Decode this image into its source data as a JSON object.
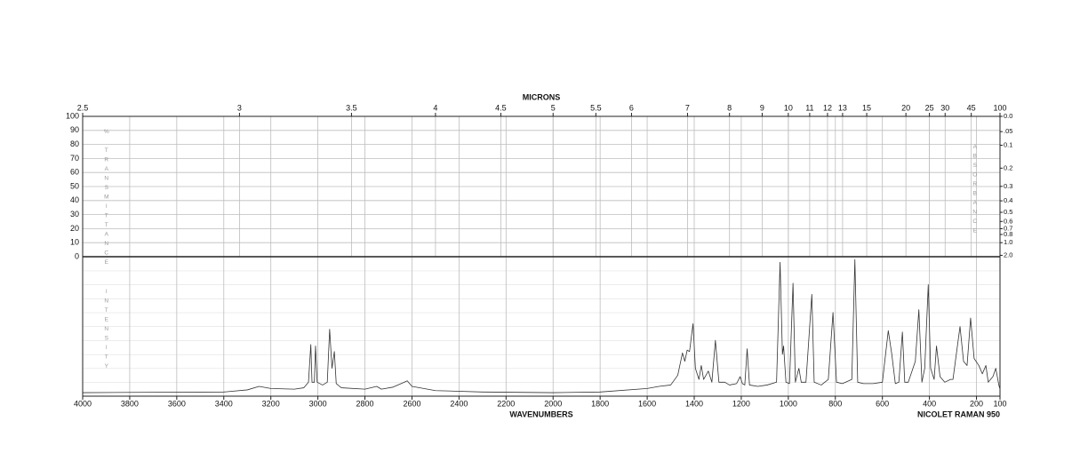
{
  "chart_data": {
    "type": "line",
    "x2label": "MICRONS",
    "xlabel": "WAVENUMBERS",
    "instrument": "NICOLET RAMAN 950",
    "upper_ylabel": "% TRANSMITTANCE",
    "y2label": "ABSORBANCE",
    "ylabel": "INTENSITY",
    "color": "#333333",
    "grid": true,
    "xlim": [
      4000,
      100
    ],
    "xticks": [
      4000,
      3800,
      3600,
      3400,
      3200,
      3000,
      2800,
      2600,
      2400,
      2200,
      2000,
      1800,
      1600,
      1400,
      1200,
      1000,
      800,
      600,
      400,
      200,
      100
    ],
    "x2_scale": "microns",
    "x2ticks": [
      2.5,
      3,
      3.5,
      4,
      4.5,
      5,
      5.5,
      6,
      7,
      8,
      9,
      10,
      11,
      12,
      13,
      15,
      20,
      25,
      30,
      45,
      100
    ],
    "upper_ylim": [
      0,
      100
    ],
    "upper_yticks": [
      0,
      10,
      20,
      30,
      40,
      50,
      60,
      70,
      80,
      90,
      100
    ],
    "y2_scale": "absorbance",
    "y2ticks": [
      {
        "value": 0,
        "label": "0.0"
      },
      {
        "value": 0.05,
        "label": ".05"
      },
      0.1,
      0.2,
      0.3,
      0.4,
      0.5,
      0.6,
      0.7,
      0.8,
      {
        "value": 1,
        "label": "1.0"
      },
      {
        "value": 2,
        "label": "2.0"
      }
    ],
    "ylim": [
      0,
      100
    ],
    "x": [
      4000,
      3700,
      3400,
      3300,
      3250,
      3200,
      3100,
      3060,
      3040,
      3030,
      3025,
      3015,
      3010,
      3003,
      2980,
      2960,
      2950,
      2940,
      2930,
      2922,
      2900,
      2800,
      2750,
      2730,
      2680,
      2640,
      2620,
      2600,
      2500,
      2300,
      2000,
      1800,
      1600,
      1550,
      1500,
      1470,
      1450,
      1440,
      1430,
      1420,
      1405,
      1395,
      1380,
      1370,
      1360,
      1340,
      1325,
      1310,
      1295,
      1270,
      1250,
      1220,
      1205,
      1195,
      1185,
      1175,
      1165,
      1130,
      1090,
      1050,
      1035,
      1025,
      1020,
      1010,
      995,
      980,
      970,
      955,
      945,
      925,
      900,
      890,
      860,
      830,
      810,
      795,
      770,
      730,
      717,
      705,
      680,
      640,
      600,
      575,
      560,
      545,
      530,
      515,
      505,
      490,
      460,
      445,
      432,
      420,
      405,
      395,
      380,
      370,
      355,
      335,
      310,
      300,
      270,
      255,
      240,
      225,
      210,
      190,
      175,
      160,
      150,
      130,
      118,
      105,
      100
    ],
    "values": [
      2.5,
      2.8,
      3,
      4.5,
      7,
      5.5,
      5,
      6,
      10,
      37,
      10,
      10,
      36,
      10,
      8,
      10,
      48,
      20,
      32,
      9,
      6,
      5,
      7,
      5,
      6.5,
      9.5,
      11,
      7,
      4,
      3,
      2.5,
      3,
      5.5,
      7,
      8,
      15,
      31,
      25,
      33,
      32,
      52,
      20,
      12,
      22,
      12,
      18,
      10,
      40,
      10,
      10,
      8,
      9,
      14,
      9,
      8,
      34,
      8,
      7,
      8,
      10,
      96,
      30,
      36,
      10,
      9,
      81,
      10,
      20,
      10,
      10,
      73,
      10,
      8,
      12,
      60,
      10,
      9,
      12,
      98,
      10,
      9,
      9,
      10,
      47,
      30,
      9,
      10,
      46,
      10,
      10,
      25,
      62,
      10,
      20,
      80,
      20,
      12,
      36,
      14,
      10,
      12,
      12,
      50,
      25,
      22,
      56,
      27,
      22,
      16,
      22,
      10,
      14,
      20,
      8,
      5
    ]
  }
}
